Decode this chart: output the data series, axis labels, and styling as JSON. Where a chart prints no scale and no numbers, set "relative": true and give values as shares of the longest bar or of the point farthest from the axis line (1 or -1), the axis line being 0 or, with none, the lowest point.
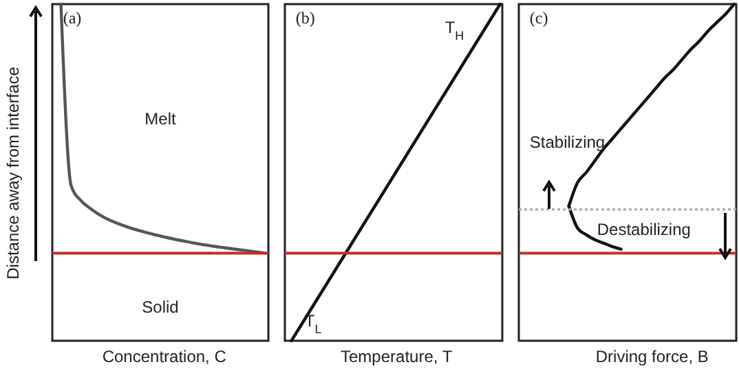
{
  "chart_data": [
    {
      "type": "line",
      "relative": true,
      "xlabel": "Concentration, C",
      "ylabel": "Distance away from interface",
      "annotations": [
        "(a)",
        "Melt",
        "Solid"
      ],
      "categories": [
        null,
        null,
        null,
        null,
        null,
        null,
        null,
        null,
        null,
        null,
        null,
        null,
        null,
        null,
        null,
        null,
        null,
        null,
        null,
        null,
        null
      ],
      "series": [
        {
          "color": "#555555",
          "values": [
            1,
            0.46,
            0.415,
            0.39,
            0.37,
            0.355,
            0.343,
            0.333,
            0.324,
            0.316,
            0.309,
            0.302,
            0.296,
            0.29,
            0.285,
            0.28,
            0.276,
            0.272,
            0.268,
            0.264,
            0.26
          ]
        }
      ],
      "ref_lines": [
        {
          "axis": "y",
          "value": 0.26,
          "color": "#cc2a2a"
        }
      ]
    },
    {
      "type": "line",
      "relative": true,
      "xlabel": "Temperature, T",
      "annotations": [
        "(b)",
        "T$_{H}$",
        "T$_{L}$"
      ],
      "categories": [
        null,
        null,
        null,
        null,
        null,
        null,
        null,
        null,
        null,
        null,
        null
      ],
      "series": [
        {
          "color": "#111111",
          "values": [
            0,
            0.1,
            0.2,
            0.3,
            0.4,
            0.5,
            0.6,
            0.7,
            0.8,
            0.9,
            1
          ]
        }
      ],
      "ref_lines": [
        {
          "axis": "y",
          "value": 0.26,
          "color": "#cc2a2a"
        }
      ]
    },
    {
      "type": "line",
      "relative": true,
      "xlabel": "Driving force, B",
      "annotations": [
        "(c)",
        "Stabilizing",
        "Destabilizing"
      ],
      "categories": [
        null,
        null,
        null,
        null,
        null,
        null,
        null,
        null,
        null,
        null,
        null,
        null,
        null,
        null,
        null,
        null,
        null,
        null,
        null,
        null
      ],
      "series": [
        {
          "color": "#111111",
          "values": [
            0.4,
            0.335,
            0.315,
            0.3,
            0.29,
            0.28,
            0.272,
            null,
            null,
            null,
            null,
            null,
            null,
            null,
            null,
            null,
            null,
            null,
            null,
            null
          ]
        },
        {
          "color": "#111111",
          "values": [
            0.4,
            0.47,
            0.5,
            0.535,
            0.57,
            0.6,
            0.63,
            0.66,
            0.69,
            0.72,
            0.75,
            0.78,
            0.805,
            0.835,
            0.865,
            0.89,
            0.92,
            0.945,
            0.97,
            1
          ]
        }
      ],
      "ref_lines": [
        {
          "axis": "y",
          "value": 0.26,
          "color": "#cc2a2a"
        },
        {
          "axis": "y",
          "value": 0.39,
          "color": "#aaaaaa",
          "line_style": "dotted"
        }
      ]
    }
  ]
}
